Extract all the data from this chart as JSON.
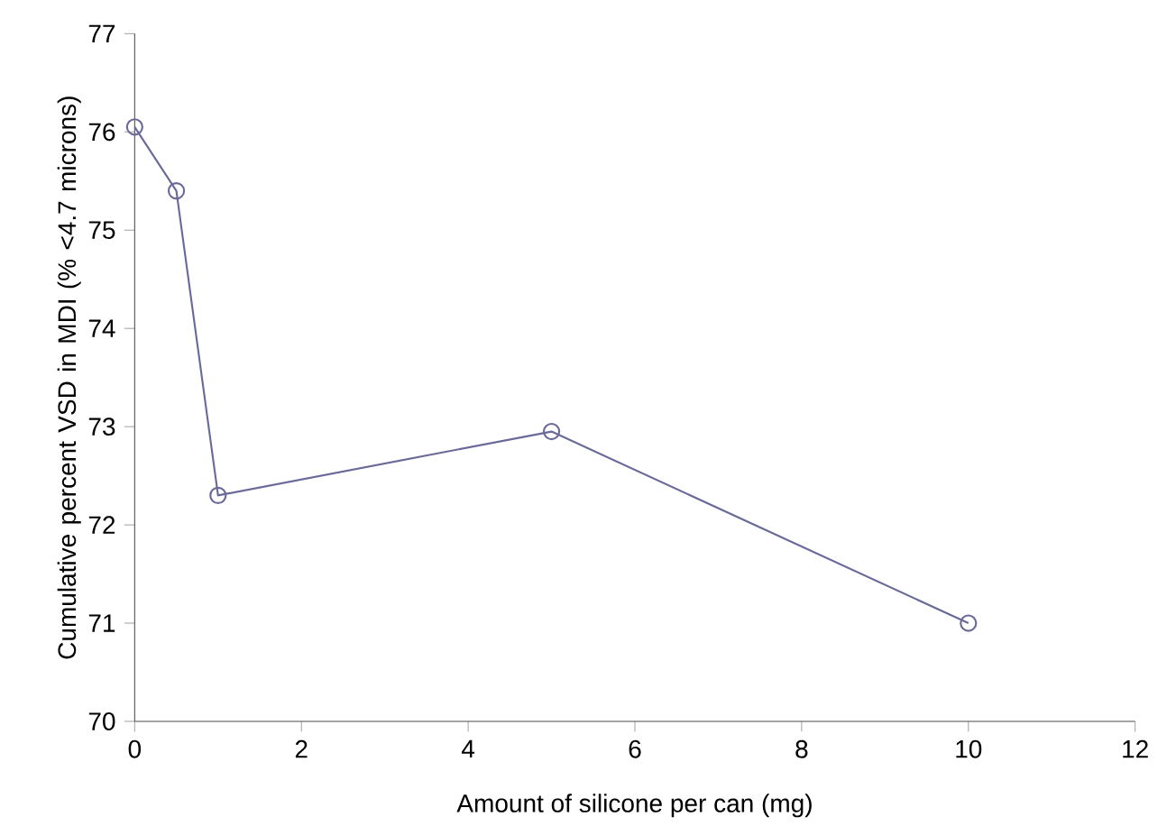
{
  "chart_data": {
    "type": "line",
    "xlabel": "Amount of silicone per can (mg)",
    "ylabel": "Cumulative percent VSD in MDI (% <4.7 microns)",
    "x": [
      0,
      0.5,
      1,
      5,
      10
    ],
    "series": [
      {
        "color": "#6a6a9a",
        "values": [
          76.05,
          75.4,
          72.3,
          72.95,
          71.0
        ]
      }
    ],
    "xlim": [
      0,
      12
    ],
    "xticks": [
      0,
      2,
      4,
      6,
      8,
      10,
      12
    ],
    "ylim": [
      70,
      77
    ],
    "yticks": [
      70,
      71,
      72,
      73,
      74,
      75,
      76,
      77
    ],
    "grid": false,
    "marker": "circle",
    "line_style": "solid"
  }
}
